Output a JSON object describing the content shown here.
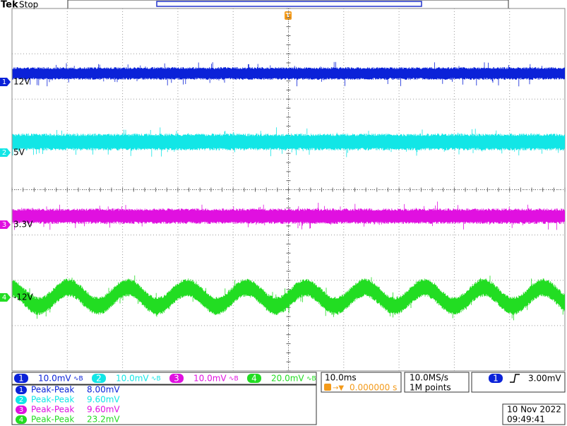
{
  "header": {
    "brand": "Tek",
    "status": "Stop",
    "trigger_marker": "T"
  },
  "channels": [
    {
      "number": "1",
      "label": "12V",
      "scale": "10.0mV",
      "color": "#0b22d8"
    },
    {
      "number": "2",
      "label": "5V",
      "scale": "10.0mV",
      "color": "#12e6e6"
    },
    {
      "number": "3",
      "label": "3.3V",
      "scale": "10.0mV",
      "color": "#e010e0"
    },
    {
      "number": "4",
      "label": "-12V",
      "scale": "20.0mV",
      "color": "#22dd22"
    }
  ],
  "measurements": [
    {
      "channel": "1",
      "type": "Peak-Peak",
      "value": "8.00mV"
    },
    {
      "channel": "2",
      "type": "Peak-Peak",
      "value": "9.60mV"
    },
    {
      "channel": "3",
      "type": "Peak-Peak",
      "value": "9.60mV"
    },
    {
      "channel": "4",
      "type": "Peak-Peak",
      "value": "23.2mV"
    }
  ],
  "timebase": {
    "scale": "10.0ms",
    "position": "0.000000 s"
  },
  "acquisition": {
    "sample_rate": "10.0MS/s",
    "record_length": "1M points"
  },
  "trigger": {
    "source": "1",
    "level": "3.00mV"
  },
  "timestamp": {
    "date": "10 Nov 2022",
    "time": "09:49:41"
  }
}
